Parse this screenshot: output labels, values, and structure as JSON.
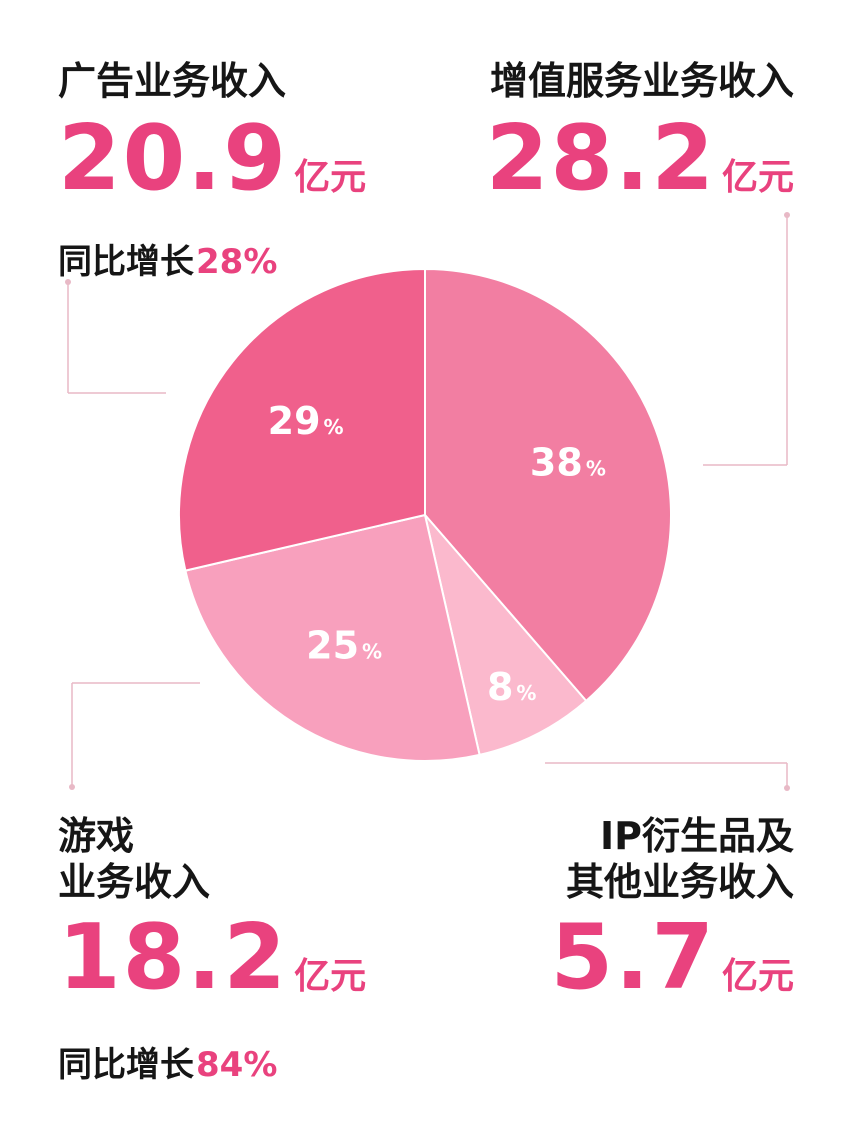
{
  "chart_data": {
    "type": "pie",
    "title": "",
    "slices": [
      {
        "label": "增值服务业务收入",
        "value": 28.2,
        "unit": "亿元",
        "percent": "38",
        "color": "#f27ea2"
      },
      {
        "label": "IP衍生品及其他业务收入",
        "value": 5.7,
        "unit": "亿元",
        "percent": "8",
        "color": "#fbb9cd"
      },
      {
        "label": "游戏业务收入",
        "value": 18.2,
        "unit": "亿元",
        "percent": "25",
        "color": "#f8a0bd"
      },
      {
        "label": "广告业务收入",
        "value": 20.9,
        "unit": "亿元",
        "percent": "29",
        "color": "#f0608c"
      }
    ],
    "percent_sign": "%",
    "legend": "none"
  },
  "blocks": {
    "ad": {
      "label": "广告业务收入",
      "value": "20.9",
      "unit": "亿元",
      "growth_label": "同比增长",
      "growth_value": "28%"
    },
    "vas": {
      "label": "增值服务业务收入",
      "value": "28.2",
      "unit": "亿元"
    },
    "game": {
      "label_line1": "游戏",
      "label_line2": "业务收入",
      "value": "18.2",
      "unit": "亿元",
      "growth_label": "同比增长",
      "growth_value": "84%"
    },
    "ip": {
      "label_line1": "IP衍生品及",
      "label_line2": "其他业务收入",
      "value": "5.7",
      "unit": "亿元"
    }
  },
  "colors": {
    "accent": "#e9427e",
    "connector": "#e8b9c6"
  }
}
